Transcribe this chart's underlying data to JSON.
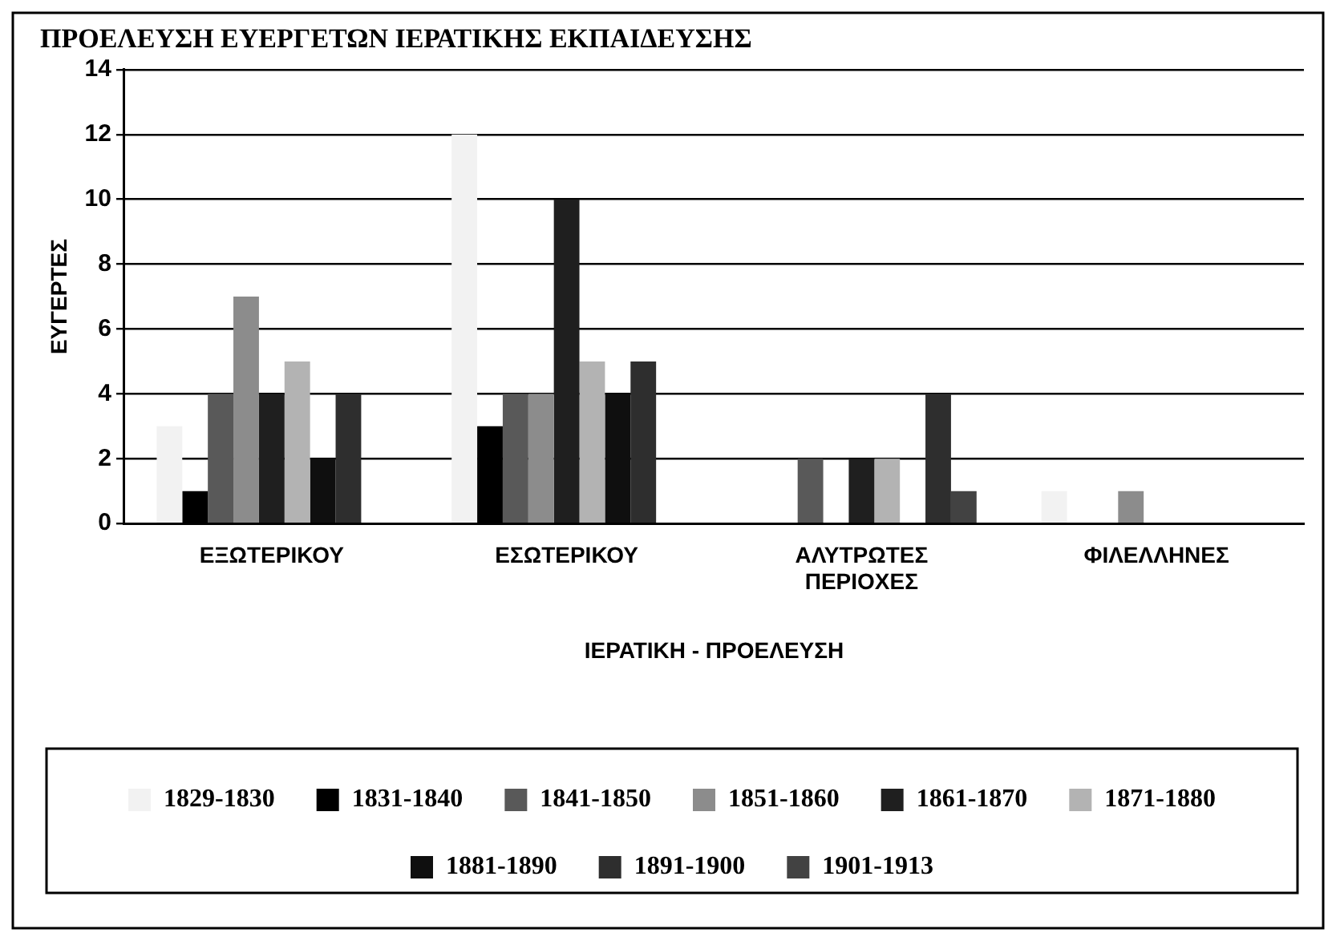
{
  "chart_data": {
    "type": "bar",
    "title": "ΠΡΟΕΛΕΥΣΗ ΕΥΕΡΓΕΤΩΝ ΙΕΡΑΤΙΚΗΣ ΕΚΠΑΙΔΕΥΣΗΣ",
    "xlabel": "ΙΕΡΑΤΙΚΗ - ΠΡΟΕΛΕΥΣΗ",
    "ylabel": "ΕΥΓΕΡΤΕΣ",
    "categories": [
      "ΕΞΩΤΕΡΙΚΟΥ",
      "ΕΣΩΤΕΡΙΚΟΥ",
      "ΑΛΥΤΡΩΤΕΣ ΠΕΡΙΟΧΕΣ",
      "ΦΙΛΕΛΛΗΝΕΣ"
    ],
    "series": [
      {
        "name": "1829-1830",
        "color": "#f2f2f2",
        "values": [
          3,
          12,
          0,
          1
        ]
      },
      {
        "name": "1831-1840",
        "color": "#000000",
        "values": [
          1,
          3,
          0,
          0
        ]
      },
      {
        "name": "1841-1850",
        "color": "#595959",
        "values": [
          4,
          4,
          2,
          0
        ]
      },
      {
        "name": "1851-1860",
        "color": "#8c8c8c",
        "values": [
          7,
          4,
          0,
          1
        ]
      },
      {
        "name": "1861-1870",
        "color": "#1f1f1f",
        "values": [
          4,
          10,
          2,
          0
        ]
      },
      {
        "name": "1871-1880",
        "color": "#b3b3b3",
        "values": [
          5,
          5,
          2,
          0
        ]
      },
      {
        "name": "1881-1890",
        "color": "#0f0f0f",
        "values": [
          2,
          4,
          0,
          0
        ]
      },
      {
        "name": "1891-1900",
        "color": "#2e2e2e",
        "values": [
          4,
          5,
          4,
          0
        ]
      },
      {
        "name": "1901-1913",
        "color": "#424242",
        "values": [
          0,
          0,
          1,
          0
        ]
      }
    ],
    "ylim": [
      0,
      14
    ],
    "yticks": [
      0,
      2,
      4,
      6,
      8,
      10,
      12,
      14
    ],
    "grid": "y",
    "legend": "bottom"
  }
}
